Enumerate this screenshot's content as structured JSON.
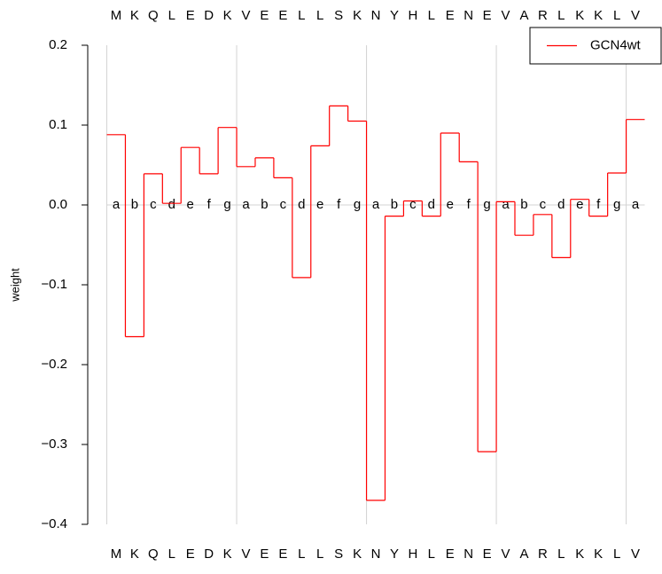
{
  "chart_data": {
    "type": "step",
    "ylabel": "weight",
    "categories": [
      "M",
      "K",
      "Q",
      "L",
      "E",
      "D",
      "K",
      "V",
      "E",
      "E",
      "L",
      "L",
      "S",
      "K",
      "N",
      "Y",
      "H",
      "L",
      "E",
      "N",
      "E",
      "V",
      "A",
      "R",
      "L",
      "K",
      "K",
      "L",
      "V"
    ],
    "heptad": [
      "a",
      "b",
      "c",
      "d",
      "e",
      "f",
      "g",
      "a",
      "b",
      "c",
      "d",
      "e",
      "f",
      "g",
      "a",
      "b",
      "c",
      "d",
      "e",
      "f",
      "g",
      "a",
      "b",
      "c",
      "d",
      "e",
      "f",
      "g",
      "a"
    ],
    "series": [
      {
        "name": "GCN4wt",
        "color": "#ff0000",
        "values": [
          0.088,
          -0.165,
          0.039,
          0.002,
          0.072,
          0.039,
          0.097,
          0.048,
          0.059,
          0.034,
          -0.091,
          0.074,
          0.124,
          0.105,
          -0.37,
          -0.014,
          0.005,
          -0.014,
          0.09,
          0.054,
          -0.309,
          0.004,
          -0.038,
          -0.012,
          -0.066,
          0.007,
          -0.014,
          0.04,
          0.107
        ]
      }
    ],
    "ylim": [
      -0.4,
      0.2
    ],
    "yticks": [
      {
        "value": -0.4,
        "label": "−0.4"
      },
      {
        "value": -0.3,
        "label": "−0.3"
      },
      {
        "value": -0.2,
        "label": "−0.2"
      },
      {
        "value": -0.1,
        "label": "−0.1"
      },
      {
        "value": 0,
        "label": "0.0"
      },
      0.1,
      0.2
    ],
    "legend": "top-right"
  }
}
